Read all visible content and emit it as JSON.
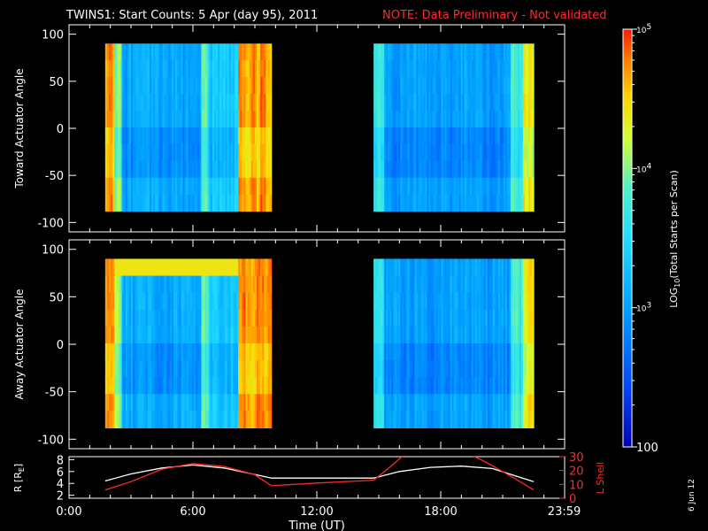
{
  "title": {
    "main": "TWINS1: Start Counts:  5 Apr (day  95), 2011",
    "note": "NOTE: Data Preliminary - Not validated"
  },
  "colors": {
    "background": "#000000",
    "axis": "#ffffff",
    "note": "#ff2a2a",
    "r_line": "#ffffff",
    "lshell_line": "#ff2a2a"
  },
  "chart_data": [
    {
      "type": "heatmap",
      "ylabel": "Toward Actuator Angle",
      "ylim": [
        -110,
        110
      ],
      "yticks": [
        "100",
        "50",
        "0",
        "-50",
        "-100"
      ],
      "ytick_values": [
        100,
        50,
        0,
        -50,
        -100
      ],
      "data_blocks": [
        {
          "t_start": 1.75,
          "t_end": 9.8,
          "angle_min": -88,
          "angle_max": 90
        },
        {
          "t_start": 14.75,
          "t_end": 22.5,
          "angle_min": -88,
          "angle_max": 90
        }
      ]
    },
    {
      "type": "heatmap",
      "ylabel": "Away Actuator Angle",
      "ylim": [
        -110,
        110
      ],
      "yticks": [
        "100",
        "50",
        "0",
        "-50",
        "-100"
      ],
      "ytick_values": [
        100,
        50,
        0,
        -50,
        -100
      ],
      "data_blocks": [
        {
          "t_start": 1.75,
          "t_end": 9.8,
          "angle_min": -88,
          "angle_max": 90
        },
        {
          "t_start": 14.75,
          "t_end": 22.5,
          "angle_min": -88,
          "angle_max": 90
        }
      ]
    },
    {
      "type": "line",
      "ylabel_left": "R [R",
      "ylabel_left_sub": "E",
      "ylabel_left_end": "]",
      "ylabel_right": "L Shell",
      "ylim_left": [
        1.5,
        8.5
      ],
      "yticks_left": [
        "8",
        "6",
        "4",
        "2"
      ],
      "ytick_values_left": [
        8,
        6,
        4,
        2
      ],
      "ylim_right": [
        0,
        30
      ],
      "yticks_right": [
        "30",
        "20",
        "10",
        "0"
      ],
      "ytick_values_right": [
        30,
        20,
        10,
        0
      ],
      "xlabel": "Time (UT)",
      "xlim": [
        0,
        24
      ],
      "xticks": [
        "0:00",
        "6:00",
        "12:00",
        "18:00",
        "23:59"
      ],
      "xtick_values": [
        0,
        6,
        12,
        18,
        23.98
      ],
      "series": [
        {
          "axis": "left",
          "color": "#ffffff",
          "x": [
            1.75,
            3,
            4.5,
            6,
            7.5,
            9,
            9.8,
            12,
            14.75,
            16,
            17.5,
            19,
            20.5,
            22.5
          ],
          "y": [
            4.4,
            5.6,
            6.6,
            7.1,
            6.6,
            5.5,
            4.9,
            4.9,
            4.9,
            6.0,
            6.7,
            6.9,
            6.5,
            4.3
          ]
        },
        {
          "axis": "right",
          "color": "#ff2a2a",
          "x": [
            1.75,
            3,
            4.5,
            6,
            7.5,
            9,
            9.8,
            12,
            14.75,
            15.5,
            16.2,
            19.5,
            20.2,
            21.5,
            22.5
          ],
          "y": [
            6,
            12,
            21,
            25,
            23,
            17,
            9,
            11,
            13,
            22,
            31,
            31,
            26,
            15,
            6
          ]
        }
      ]
    }
  ],
  "colorbar": {
    "label_main": "LOG",
    "label_sub": "10",
    "label_end": "(Total Starts per Scan)",
    "ticks": [
      {
        "value": 100,
        "base": "100",
        "exp": ""
      },
      {
        "value": 1000,
        "base": "10",
        "exp": "3"
      },
      {
        "value": 10000,
        "base": "10",
        "exp": "4"
      },
      {
        "value": 100000,
        "base": "10",
        "exp": "5"
      }
    ],
    "range": [
      100,
      100000
    ]
  },
  "footer_date": "6 Jun 12"
}
